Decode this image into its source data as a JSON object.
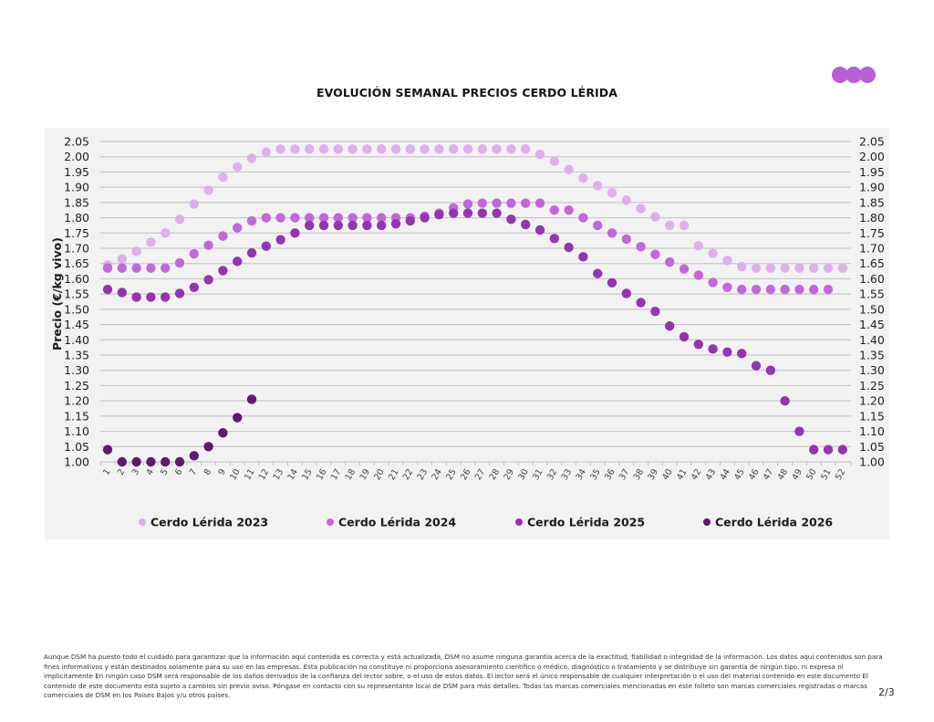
{
  "page": {
    "logo_color": "#b95fd6",
    "page_number": "2/3",
    "disclaimer": "Aunque DSM ha puesto todo el cuidado para garantizar que la información aquí contenida es correcta y está actualizada, DSM no asume ninguna garantía acerca de la exactitud, fiabilidad o integridad de la información. Los datos aquí contenidos son para fines informativos y están destinados solamente para su uso en las empresas. Esta publicación no constituye ni proporciona asesoramiento científico o médico, diagnóstico o tratamiento y se distribuye sin garantía de ningún tipo, ni expresa ni implícitamente En ningún caso DSM será responsable de los daños derivados de la confianza del lector sobre, o el uso de estos datos. El lector será el único responsable de cualquier interpretación o el uso del material contenido en este documento El contenido de este documento está sujeto a cambios sin previo aviso. Póngase en contacto con su representante local de DSM para más detalles. Todas las marcas comerciales mencionadas en este folleto son marcas comerciales registradas o marcas comerciales de DSM en los Países Bajos y/u otros países."
  },
  "chart_data": {
    "type": "scatter",
    "title": "EVOLUCIÓN SEMANAL PRECIOS CERDO LÉRIDA",
    "xlabel": "",
    "ylabel": "Precio (€/kg vivo)",
    "ylim": [
      1.0,
      2.05
    ],
    "yticks": [
      "1.00",
      "1.05",
      "1.10",
      "1.15",
      "1.20",
      "1.25",
      "1.30",
      "1.35",
      "1.40",
      "1.45",
      "1.50",
      "1.55",
      "1.60",
      "1.65",
      "1.70",
      "1.75",
      "1.80",
      "1.85",
      "1.90",
      "1.95",
      "2.00",
      "2.05"
    ],
    "y_axis_right_mirror": true,
    "grid": true,
    "legend_position": "bottom",
    "x": [
      1,
      2,
      3,
      4,
      5,
      6,
      7,
      8,
      9,
      10,
      11,
      12,
      13,
      14,
      15,
      16,
      17,
      18,
      19,
      20,
      21,
      22,
      23,
      24,
      25,
      26,
      27,
      28,
      29,
      30,
      31,
      32,
      33,
      34,
      35,
      36,
      37,
      38,
      39,
      40,
      41,
      42,
      43,
      44,
      45,
      46,
      47,
      48,
      49,
      50,
      51,
      52
    ],
    "series": [
      {
        "name": "Cerdo Lérida 2023",
        "color": "#ddb0ea",
        "values": [
          1.645,
          1.665,
          1.69,
          1.72,
          1.75,
          1.795,
          1.845,
          1.89,
          1.933,
          1.967,
          1.995,
          2.015,
          2.025,
          2.025,
          2.025,
          2.025,
          2.025,
          2.025,
          2.025,
          2.025,
          2.025,
          2.025,
          2.025,
          2.025,
          2.025,
          2.025,
          2.025,
          2.025,
          2.025,
          2.025,
          2.008,
          1.985,
          1.958,
          1.93,
          1.905,
          1.882,
          1.858,
          1.83,
          1.803,
          1.775,
          1.775,
          1.708,
          1.683,
          1.66,
          1.64,
          1.635,
          1.635,
          1.635,
          1.635,
          1.635,
          1.635,
          1.635
        ]
      },
      {
        "name": "Cerdo Lérida 2024",
        "color": "#c267d9",
        "values": [
          1.635,
          1.635,
          1.635,
          1.635,
          1.635,
          1.652,
          1.682,
          1.71,
          1.74,
          1.767,
          1.79,
          1.8,
          1.8,
          1.8,
          1.8,
          1.8,
          1.8,
          1.8,
          1.8,
          1.8,
          1.8,
          1.8,
          1.805,
          1.815,
          1.832,
          1.845,
          1.848,
          1.848,
          1.848,
          1.848,
          1.848,
          1.825,
          1.825,
          1.8,
          1.775,
          1.75,
          1.73,
          1.705,
          1.68,
          1.655,
          1.632,
          1.612,
          1.588,
          1.572,
          1.565,
          1.565,
          1.565,
          1.565,
          1.565,
          1.565,
          1.565,
          null
        ]
      },
      {
        "name": "Cerdo Lérida 2025",
        "color": "#9435b0",
        "values": [
          1.565,
          1.555,
          1.54,
          1.54,
          1.54,
          1.552,
          1.572,
          1.597,
          1.627,
          1.657,
          1.685,
          1.707,
          1.728,
          1.75,
          1.775,
          1.775,
          1.775,
          1.775,
          1.775,
          1.775,
          1.78,
          1.79,
          1.8,
          1.81,
          1.815,
          1.815,
          1.815,
          1.815,
          1.795,
          1.778,
          1.76,
          1.732,
          1.703,
          1.672,
          1.617,
          1.587,
          1.552,
          1.522,
          1.493,
          1.445,
          1.41,
          1.385,
          1.37,
          1.36,
          1.355,
          1.315,
          1.3,
          1.2,
          1.1,
          1.04,
          1.04,
          1.04
        ]
      },
      {
        "name": "Cerdo Lérida 2026",
        "color": "#5e1a6e",
        "values": [
          1.04,
          1.0,
          1.0,
          1.0,
          1.0,
          1.0,
          1.02,
          1.05,
          1.095,
          1.145,
          1.205,
          null,
          null,
          null,
          null,
          null,
          null,
          null,
          null,
          null,
          null,
          null,
          null,
          null,
          null,
          null,
          null,
          null,
          null,
          null,
          null,
          null,
          null,
          null,
          null,
          null,
          null,
          null,
          null,
          null,
          null,
          null,
          null,
          null,
          null,
          null,
          null,
          null,
          null,
          null,
          null,
          null
        ]
      }
    ]
  }
}
